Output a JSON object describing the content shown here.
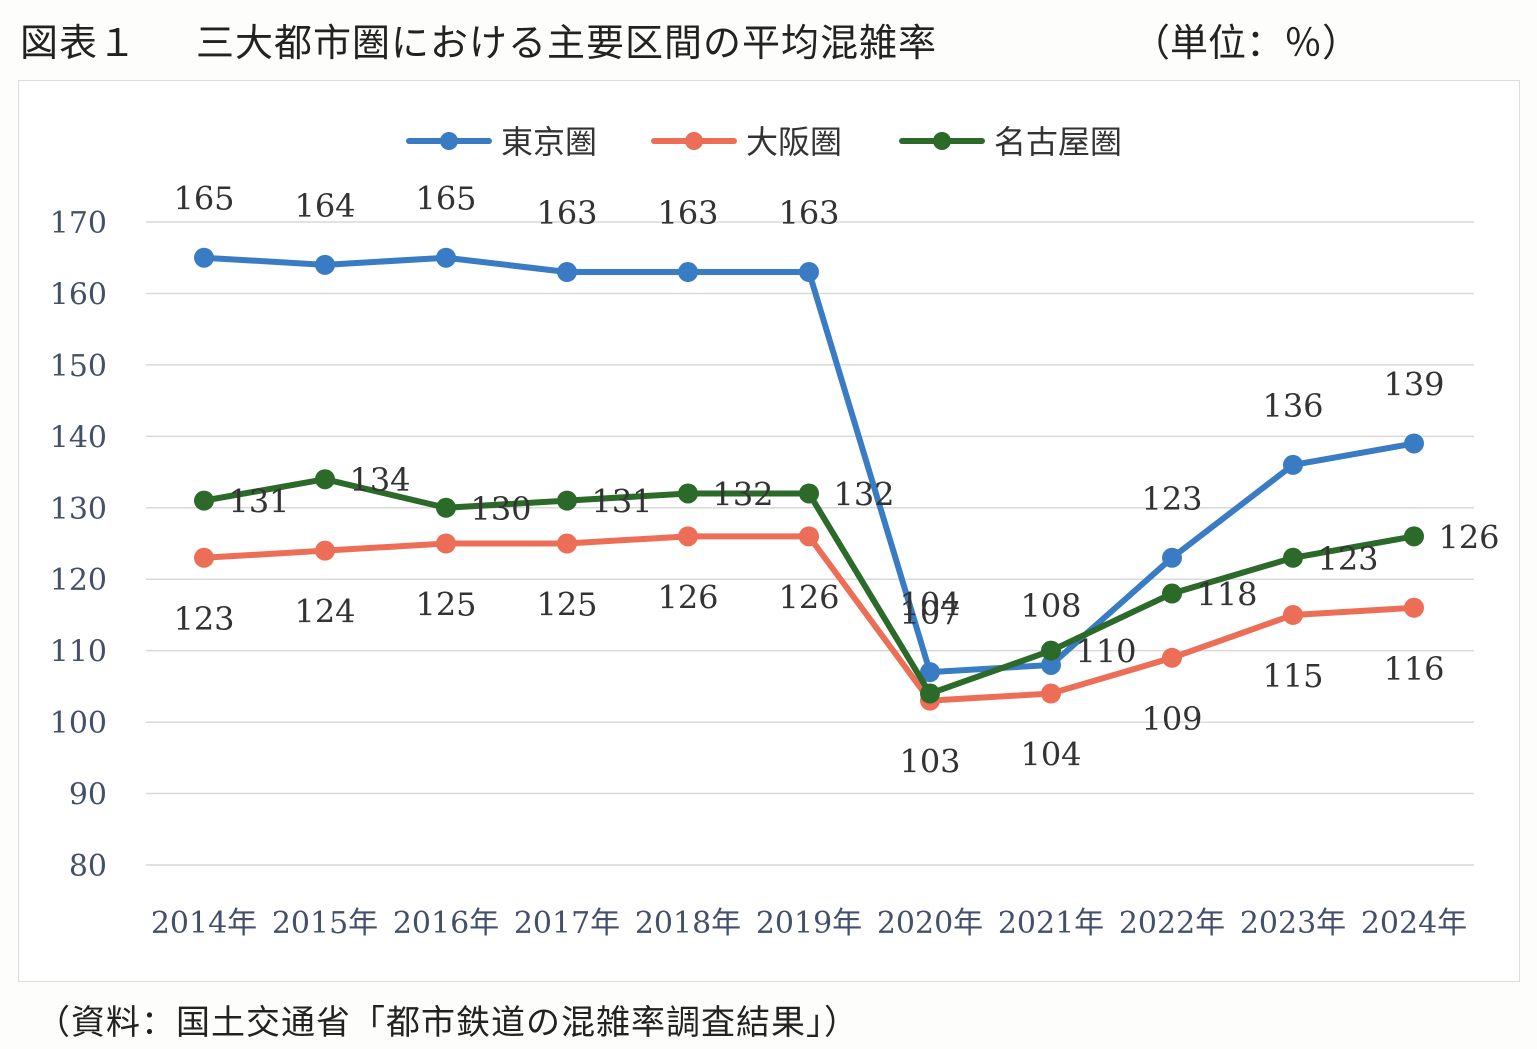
{
  "figure": {
    "number": "図表１",
    "title": "三大都市圏における主要区間の平均混雑率",
    "unit": "（単位：％）",
    "source": "（資料：国土交通省「都市鉄道の混雑率調査結果」）"
  },
  "chart_data": {
    "type": "line",
    "categories": [
      "2014年",
      "2015年",
      "2016年",
      "2017年",
      "2018年",
      "2019年",
      "2020年",
      "2021年",
      "2022年",
      "2023年",
      "2024年"
    ],
    "series": [
      {
        "name": "東京圏",
        "color": "#3a7cc4",
        "values": [
          165,
          164,
          165,
          163,
          163,
          163,
          107,
          108,
          123,
          136,
          139
        ]
      },
      {
        "name": "大阪圏",
        "color": "#ec6e56",
        "values": [
          123,
          124,
          125,
          125,
          126,
          126,
          103,
          104,
          109,
          115,
          116
        ]
      },
      {
        "name": "名古屋圏",
        "color": "#2c6a2a",
        "values": [
          131,
          134,
          130,
          131,
          132,
          132,
          104,
          110,
          118,
          123,
          126
        ]
      }
    ],
    "ylim": [
      80,
      170
    ],
    "yticks": [
      80,
      90,
      100,
      110,
      120,
      130,
      140,
      150,
      160,
      170
    ],
    "grid": true,
    "legend": "top-center",
    "data_labels": true
  }
}
